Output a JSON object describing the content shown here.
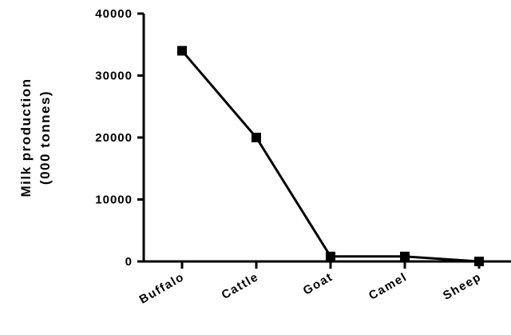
{
  "chart_data": {
    "type": "line",
    "categories": [
      "Buffalo",
      "Cattle",
      "Goat",
      "Camel",
      "Sheep"
    ],
    "series": [
      {
        "values": [
          34000,
          20000,
          800,
          800,
          0
        ]
      }
    ],
    "ylabel_line1": "Milk production",
    "ylabel_line2": "(000 tonnes)",
    "xlabel": "",
    "ylim": [
      0,
      40000
    ],
    "yticks": [
      "0",
      "10000",
      "20000",
      "30000",
      "40000"
    ],
    "grid": false,
    "marker": "square",
    "line_color": "#000000"
  }
}
